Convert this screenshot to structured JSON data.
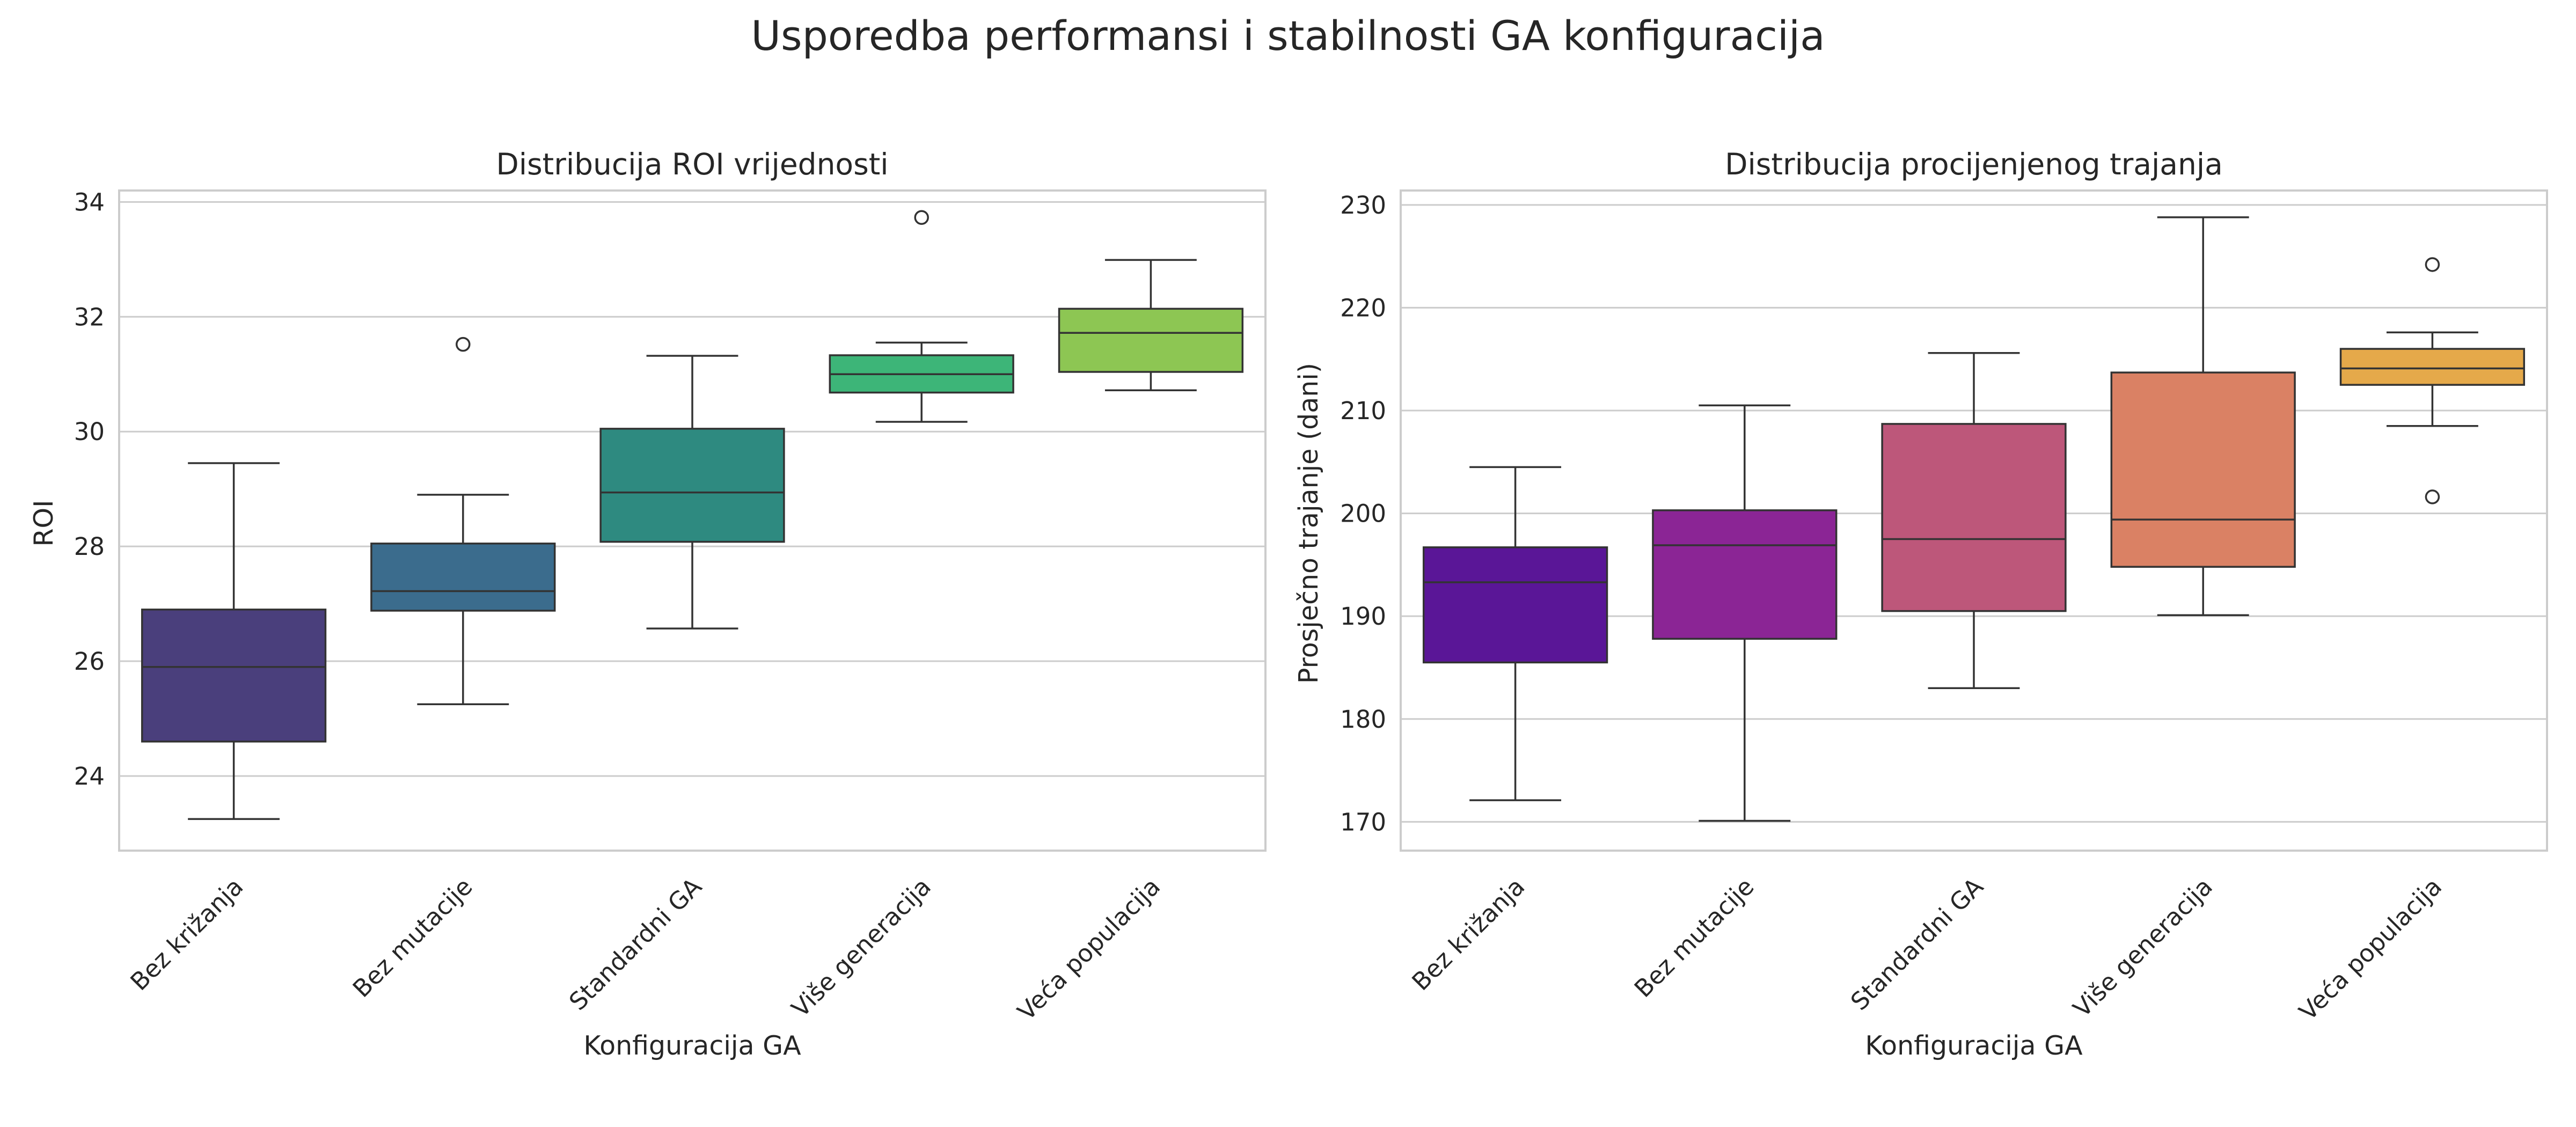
{
  "figure": {
    "title": "Usporedba performansi i stabilnosti GA konfiguracija"
  },
  "chart_data": [
    {
      "type": "box",
      "title": "Distribucija ROI vrijednosti",
      "xlabel": "Konfiguracija GA",
      "ylabel": "ROI",
      "categories": [
        "Bez križanja",
        "Bez mutacije",
        "Standardni GA",
        "Više generacija",
        "Veća populacija"
      ],
      "ylim": [
        22.7,
        34.2
      ],
      "yticks": [
        24,
        26,
        28,
        30,
        32,
        34
      ],
      "grid": true,
      "palette": "viridis",
      "boxes": [
        {
          "whislo": 23.25,
          "q1": 24.6,
          "med": 25.9,
          "q3": 26.9,
          "whishi": 29.45,
          "fliers": [],
          "color": "#4a3f7c"
        },
        {
          "whislo": 25.25,
          "q1": 26.88,
          "med": 27.22,
          "q3": 28.05,
          "whishi": 28.9,
          "fliers": [
            31.52
          ],
          "color": "#3b6c8d"
        },
        {
          "whislo": 26.57,
          "q1": 28.08,
          "med": 28.94,
          "q3": 30.05,
          "whishi": 31.32,
          "fliers": [],
          "color": "#2e8a80"
        },
        {
          "whislo": 30.17,
          "q1": 30.68,
          "med": 31.0,
          "q3": 31.33,
          "whishi": 31.55,
          "fliers": [
            33.73
          ],
          "color": "#3db578"
        },
        {
          "whislo": 30.72,
          "q1": 31.04,
          "med": 31.72,
          "q3": 32.14,
          "whishi": 32.99,
          "fliers": [],
          "color": "#8dc653"
        }
      ]
    },
    {
      "type": "box",
      "title": "Distribucija procijenjenog trajanja",
      "xlabel": "Konfiguracija GA",
      "ylabel": "Prosječno trajanje (dani)",
      "categories": [
        "Bez križanja",
        "Bez mutacije",
        "Standardni GA",
        "Više generacija",
        "Veća populacija"
      ],
      "ylim": [
        167.2,
        231.4
      ],
      "yticks": [
        170,
        180,
        190,
        200,
        210,
        220,
        230
      ],
      "grid": true,
      "palette": "plasma",
      "boxes": [
        {
          "whislo": 172.1,
          "q1": 185.5,
          "med": 193.3,
          "q3": 196.7,
          "whishi": 204.5,
          "fliers": [],
          "color": "#5a1697"
        },
        {
          "whislo": 170.1,
          "q1": 187.8,
          "med": 196.9,
          "q3": 200.3,
          "whishi": 210.5,
          "fliers": [],
          "color": "#8b2595"
        },
        {
          "whislo": 183.0,
          "q1": 190.5,
          "med": 197.5,
          "q3": 208.7,
          "whishi": 215.6,
          "fliers": [],
          "color": "#bd577a"
        },
        {
          "whislo": 190.1,
          "q1": 194.8,
          "med": 199.4,
          "q3": 213.7,
          "whishi": 228.8,
          "fliers": [],
          "color": "#da8164"
        },
        {
          "whislo": 208.5,
          "q1": 212.5,
          "med": 214.1,
          "q3": 216.0,
          "whishi": 217.6,
          "fliers": [
            224.2,
            201.6
          ],
          "color": "#e5a94a"
        }
      ]
    }
  ]
}
